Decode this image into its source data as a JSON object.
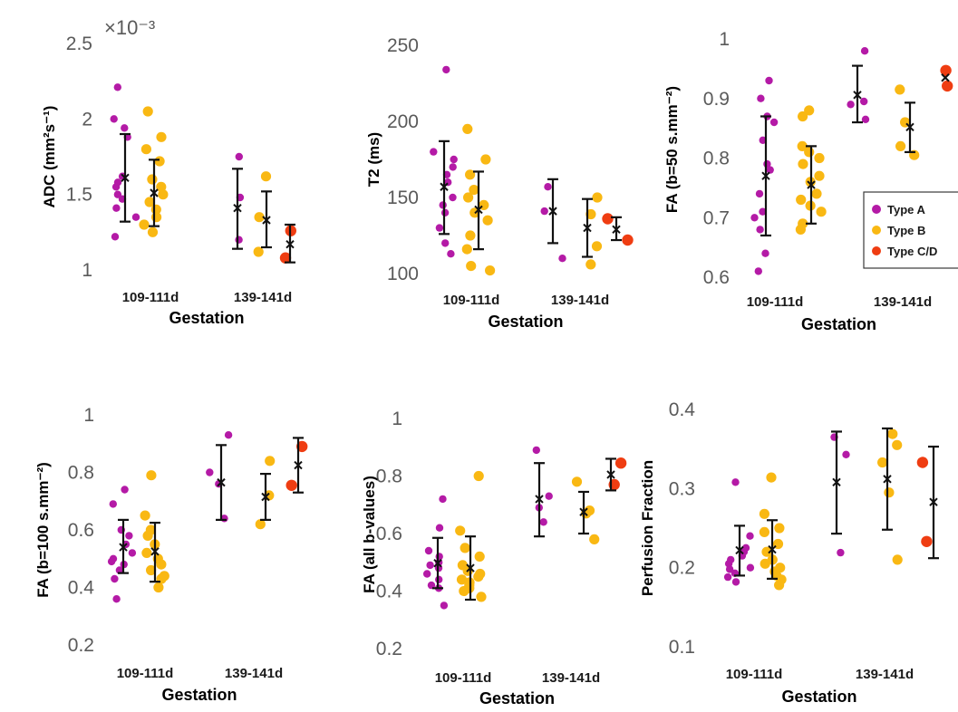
{
  "colors": {
    "type_a": "#b41aa6",
    "type_b": "#f9b813",
    "type_cd": "#ef3d12"
  },
  "legend": {
    "placement": "inside-right of panel 3",
    "entries": [
      {
        "label": "Type A",
        "color_key": "type_a"
      },
      {
        "label": "Type B",
        "color_key": "type_b"
      },
      {
        "label": "Type C/D",
        "color_key": "type_cd"
      }
    ]
  },
  "chart_data": [
    {
      "type": "scatter",
      "ylabel": "ADC (mm²s⁻¹)",
      "xlabel": "Gestation",
      "multiplier": "×10⁻³",
      "ylim": [
        1,
        2.5
      ],
      "yticks": [
        "1",
        "1.5",
        "2",
        "2.5"
      ],
      "categories": [
        "109-111d",
        "139-141d"
      ],
      "groups": [
        {
          "category": "109-111d",
          "series": "type_a",
          "mean": 1.61,
          "err_low": 1.32,
          "err_high": 1.9,
          "points": [
            2.21,
            2.0,
            1.94,
            1.88,
            1.62,
            1.58,
            1.55,
            1.5,
            1.47,
            1.41,
            1.35,
            1.22
          ]
        },
        {
          "category": "109-111d",
          "series": "type_b",
          "mean": 1.51,
          "err_low": 1.29,
          "err_high": 1.73,
          "points": [
            2.05,
            1.88,
            1.8,
            1.72,
            1.6,
            1.55,
            1.5,
            1.45,
            1.4,
            1.35,
            1.3,
            1.25
          ]
        },
        {
          "category": "139-141d",
          "series": "type_a",
          "mean": 1.41,
          "err_low": 1.14,
          "err_high": 1.67,
          "points": [
            1.75,
            1.48,
            1.2
          ]
        },
        {
          "category": "139-141d",
          "series": "type_b",
          "mean": 1.33,
          "err_low": 1.15,
          "err_high": 1.52,
          "points": [
            1.62,
            1.35,
            1.12
          ]
        },
        {
          "category": "139-141d",
          "series": "type_cd",
          "mean": 1.17,
          "err_low": 1.05,
          "err_high": 1.3,
          "points": [
            1.26,
            1.08
          ]
        }
      ]
    },
    {
      "type": "scatter",
      "ylabel": "T2 (ms)",
      "xlabel": "Gestation",
      "ylim": [
        100,
        250
      ],
      "yticks": [
        "100",
        "150",
        "200",
        "250"
      ],
      "categories": [
        "109-111d",
        "139-141d"
      ],
      "groups": [
        {
          "category": "109-111d",
          "series": "type_a",
          "mean": 157,
          "err_low": 126,
          "err_high": 187,
          "points": [
            234,
            180,
            175,
            170,
            165,
            160,
            150,
            145,
            140,
            130,
            120,
            113
          ]
        },
        {
          "category": "109-111d",
          "series": "type_b",
          "mean": 142,
          "err_low": 116,
          "err_high": 167,
          "points": [
            195,
            175,
            165,
            155,
            150,
            145,
            140,
            135,
            125,
            116,
            105,
            102
          ]
        },
        {
          "category": "139-141d",
          "series": "type_a",
          "mean": 141,
          "err_low": 120,
          "err_high": 162,
          "points": [
            157,
            141,
            110
          ]
        },
        {
          "category": "139-141d",
          "series": "type_b",
          "mean": 130,
          "err_low": 111,
          "err_high": 149,
          "points": [
            150,
            139,
            118,
            106
          ]
        },
        {
          "category": "139-141d",
          "series": "type_cd",
          "mean": 129,
          "err_low": 122,
          "err_high": 137,
          "points": [
            136,
            122
          ]
        }
      ]
    },
    {
      "type": "scatter",
      "ylabel": "FA (b=50 s.mm⁻²)",
      "xlabel": "Gestation",
      "ylim": [
        0.6,
        1
      ],
      "yticks": [
        "0.6",
        "0.7",
        "0.8",
        "0.9",
        "1"
      ],
      "categories": [
        "109-111d",
        "139-141d"
      ],
      "groups": [
        {
          "category": "109-111d",
          "series": "type_a",
          "mean": 0.77,
          "err_low": 0.67,
          "err_high": 0.87,
          "points": [
            0.93,
            0.9,
            0.87,
            0.86,
            0.83,
            0.79,
            0.78,
            0.74,
            0.71,
            0.7,
            0.68,
            0.64,
            0.61
          ]
        },
        {
          "category": "109-111d",
          "series": "type_b",
          "mean": 0.755,
          "err_low": 0.69,
          "err_high": 0.82,
          "points": [
            0.88,
            0.87,
            0.82,
            0.81,
            0.8,
            0.79,
            0.77,
            0.76,
            0.74,
            0.73,
            0.72,
            0.71,
            0.69,
            0.68
          ]
        },
        {
          "category": "139-141d",
          "series": "type_a",
          "mean": 0.906,
          "err_low": 0.86,
          "err_high": 0.955,
          "points": [
            0.98,
            0.895,
            0.89,
            0.865
          ]
        },
        {
          "category": "139-141d",
          "series": "type_b",
          "mean": 0.852,
          "err_low": 0.81,
          "err_high": 0.893,
          "points": [
            0.915,
            0.86,
            0.82,
            0.805
          ]
        },
        {
          "category": "139-141d",
          "series": "type_cd",
          "mean": 0.935,
          "err_low": 0.935,
          "err_high": 0.935,
          "points": [
            0.947,
            0.921
          ]
        }
      ]
    },
    {
      "type": "scatter",
      "ylabel": "FA (b=100 s.mm⁻²)",
      "xlabel": "Gestation",
      "ylim": [
        0.2,
        1
      ],
      "yticks": [
        "0.2",
        "0.4",
        "0.6",
        "0.8",
        "1"
      ],
      "categories": [
        "109-111d",
        "139-141d"
      ],
      "groups": [
        {
          "category": "109-111d",
          "series": "type_a",
          "mean": 0.54,
          "err_low": 0.45,
          "err_high": 0.635,
          "points": [
            0.74,
            0.69,
            0.6,
            0.58,
            0.55,
            0.52,
            0.5,
            0.49,
            0.48,
            0.46,
            0.43,
            0.36
          ]
        },
        {
          "category": "109-111d",
          "series": "type_b",
          "mean": 0.525,
          "err_low": 0.42,
          "err_high": 0.625,
          "points": [
            0.79,
            0.65,
            0.6,
            0.58,
            0.55,
            0.52,
            0.5,
            0.48,
            0.46,
            0.44,
            0.43,
            0.4
          ]
        },
        {
          "category": "139-141d",
          "series": "type_a",
          "mean": 0.765,
          "err_low": 0.635,
          "err_high": 0.895,
          "points": [
            0.93,
            0.8,
            0.76,
            0.64
          ]
        },
        {
          "category": "139-141d",
          "series": "type_b",
          "mean": 0.715,
          "err_low": 0.635,
          "err_high": 0.795,
          "points": [
            0.84,
            0.72,
            0.62
          ]
        },
        {
          "category": "139-141d",
          "series": "type_cd",
          "mean": 0.825,
          "err_low": 0.73,
          "err_high": 0.92,
          "points": [
            0.89,
            0.755
          ]
        }
      ]
    },
    {
      "type": "scatter",
      "ylabel": "FA (all b-values)",
      "xlabel": "Gestation",
      "ylim": [
        0.2,
        1
      ],
      "yticks": [
        "0.2",
        "0.4",
        "0.6",
        "0.8",
        "1"
      ],
      "categories": [
        "109-111d",
        "139-141d"
      ],
      "groups": [
        {
          "category": "109-111d",
          "series": "type_a",
          "mean": 0.497,
          "err_low": 0.41,
          "err_high": 0.585,
          "points": [
            0.72,
            0.62,
            0.54,
            0.52,
            0.5,
            0.49,
            0.48,
            0.46,
            0.44,
            0.42,
            0.41,
            0.35
          ]
        },
        {
          "category": "109-111d",
          "series": "type_b",
          "mean": 0.48,
          "err_low": 0.37,
          "err_high": 0.59,
          "points": [
            0.8,
            0.61,
            0.55,
            0.52,
            0.49,
            0.47,
            0.46,
            0.45,
            0.44,
            0.43,
            0.42,
            0.41,
            0.4,
            0.38
          ]
        },
        {
          "category": "139-141d",
          "series": "type_a",
          "mean": 0.72,
          "err_low": 0.59,
          "err_high": 0.845,
          "points": [
            0.89,
            0.73,
            0.69,
            0.64
          ]
        },
        {
          "category": "139-141d",
          "series": "type_b",
          "mean": 0.675,
          "err_low": 0.6,
          "err_high": 0.745,
          "points": [
            0.78,
            0.68,
            0.67,
            0.58
          ]
        },
        {
          "category": "139-141d",
          "series": "type_cd",
          "mean": 0.805,
          "err_low": 0.75,
          "err_high": 0.86,
          "points": [
            0.845,
            0.77
          ]
        }
      ]
    },
    {
      "type": "scatter",
      "ylabel": "Perfusion Fraction",
      "xlabel": "Gestation",
      "ylim": [
        0.1,
        0.4
      ],
      "yticks": [
        "0.1",
        "0.2",
        "0.3",
        "0.4"
      ],
      "categories": [
        "109-111d",
        "139-141d"
      ],
      "groups": [
        {
          "category": "109-111d",
          "series": "type_a",
          "mean": 0.222,
          "err_low": 0.19,
          "err_high": 0.253,
          "points": [
            0.308,
            0.24,
            0.225,
            0.22,
            0.215,
            0.21,
            0.205,
            0.2,
            0.198,
            0.193,
            0.188,
            0.182
          ]
        },
        {
          "category": "109-111d",
          "series": "type_b",
          "mean": 0.223,
          "err_low": 0.186,
          "err_high": 0.26,
          "points": [
            0.314,
            0.268,
            0.25,
            0.245,
            0.23,
            0.22,
            0.21,
            0.205,
            0.2,
            0.195,
            0.19,
            0.185,
            0.178
          ]
        },
        {
          "category": "139-141d",
          "series": "type_a",
          "mean": 0.308,
          "err_low": 0.243,
          "err_high": 0.372,
          "points": [
            0.365,
            0.343,
            0.219
          ]
        },
        {
          "category": "139-141d",
          "series": "type_b",
          "mean": 0.312,
          "err_low": 0.248,
          "err_high": 0.376,
          "points": [
            0.369,
            0.355,
            0.333,
            0.295,
            0.21
          ]
        },
        {
          "category": "139-141d",
          "series": "type_cd",
          "mean": 0.283,
          "err_low": 0.212,
          "err_high": 0.353,
          "points": [
            0.333,
            0.233
          ]
        }
      ]
    }
  ]
}
